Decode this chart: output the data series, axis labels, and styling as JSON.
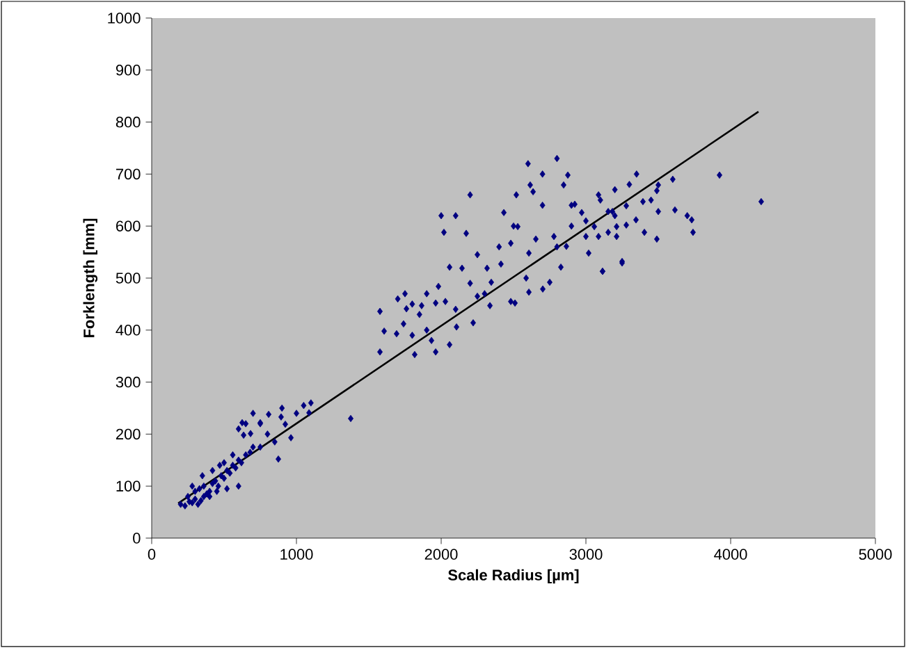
{
  "chart_data": {
    "type": "scatter",
    "xlabel": "Scale Radius [µm]",
    "ylabel": "Forklength [mm]",
    "xlim": [
      0,
      5000
    ],
    "ylim": [
      0,
      1000
    ],
    "xticks": [
      0,
      1000,
      2000,
      3000,
      4000,
      5000
    ],
    "yticks": [
      0,
      100,
      200,
      300,
      400,
      500,
      600,
      700,
      800,
      900,
      1000
    ],
    "grid": false,
    "series": [
      {
        "color": "#000080",
        "marker": "diamond",
        "x": [
          625,
          750,
          808,
          894,
          923,
          962,
          875,
          1375,
          1087,
          635,
          683,
          200,
          230,
          260,
          280,
          300,
          320,
          340,
          360,
          300,
          330,
          360,
          380,
          400,
          420,
          440,
          460,
          480,
          500,
          520,
          540,
          560,
          580,
          600,
          620,
          650,
          680,
          700,
          350,
          420,
          470,
          500,
          560,
          600,
          650,
          750,
          800,
          850,
          900,
          1000,
          1050,
          1100,
          700,
          400,
          450,
          250,
          280,
          600,
          520,
          750,
          2875,
          2846,
          2615,
          2635,
          2519,
          2433,
          2019,
          2173,
          2250,
          2058,
          2144,
          1981,
          1577,
          1606,
          1577,
          1817,
          1962,
          2058,
          1760,
          1865,
          2029,
          2221,
          2317,
          2413,
          2481,
          2587,
          2702,
          2750,
          2510,
          2606,
          2529,
          2481,
          2654,
          2606,
          2827,
          2779,
          2865,
          2923,
          2971,
          3087,
          3058,
          3154,
          3115,
          3250,
          3019,
          3087,
          3212,
          1740,
          1962,
          2250,
          2346,
          2337,
          2106,
          1933,
          1692,
          3500,
          3490,
          3394,
          3279,
          3500,
          3615,
          3731,
          3740,
          3490,
          3404,
          3346,
          3250,
          3115,
          3279,
          3154,
          3183,
          3212,
          3923,
          4211,
          1700,
          1750,
          1800,
          1850,
          1900,
          2000,
          2100,
          2200,
          2600,
          2800,
          2700,
          2900,
          3000,
          3100,
          3200,
          3300,
          3450,
          3600,
          3700,
          2400,
          2500,
          2200,
          2300,
          2100,
          1900,
          1800,
          2700,
          2900,
          3350,
          3200,
          3000,
          2800
        ],
        "values": [
          222,
          222,
          238,
          233,
          219,
          193,
          152,
          230,
          241,
          198,
          201,
          65,
          62,
          70,
          68,
          75,
          65,
          72,
          80,
          90,
          95,
          100,
          85,
          90,
          105,
          110,
          100,
          120,
          115,
          130,
          125,
          140,
          135,
          150,
          145,
          160,
          165,
          175,
          120,
          130,
          140,
          145,
          160,
          210,
          220,
          175,
          200,
          185,
          250,
          240,
          255,
          260,
          240,
          80,
          90,
          80,
          100,
          100,
          95,
          220,
          698,
          679,
          679,
          666,
          660,
          626,
          588,
          586,
          545,
          521,
          519,
          484,
          436,
          398,
          358,
          353,
          358,
          372,
          441,
          447,
          455,
          414,
          519,
          527,
          455,
          500,
          479,
          492,
          452,
          473,
          599,
          567,
          575,
          548,
          521,
          580,
          561,
          642,
          626,
          660,
          599,
          628,
          513,
          532,
          548,
          580,
          599,
          412,
          452,
          465,
          492,
          447,
          406,
          380,
          393,
          679,
          668,
          647,
          639,
          628,
          631,
          612,
          588,
          575,
          588,
          612,
          529,
          513,
          602,
          588,
          628,
          580,
          698,
          647,
          460,
          470,
          450,
          430,
          470,
          620,
          620,
          660,
          720,
          730,
          700,
          600,
          610,
          650,
          670,
          680,
          650,
          690,
          620,
          560,
          600,
          490,
          470,
          440,
          400,
          390,
          640,
          640,
          700,
          620,
          580,
          560
        ]
      },
      {
        "type": "line",
        "color": "#000000",
        "marker": "none",
        "line_style": "solid",
        "x": [
          183,
          4192
        ],
        "values": [
          67,
          820
        ]
      }
    ]
  }
}
